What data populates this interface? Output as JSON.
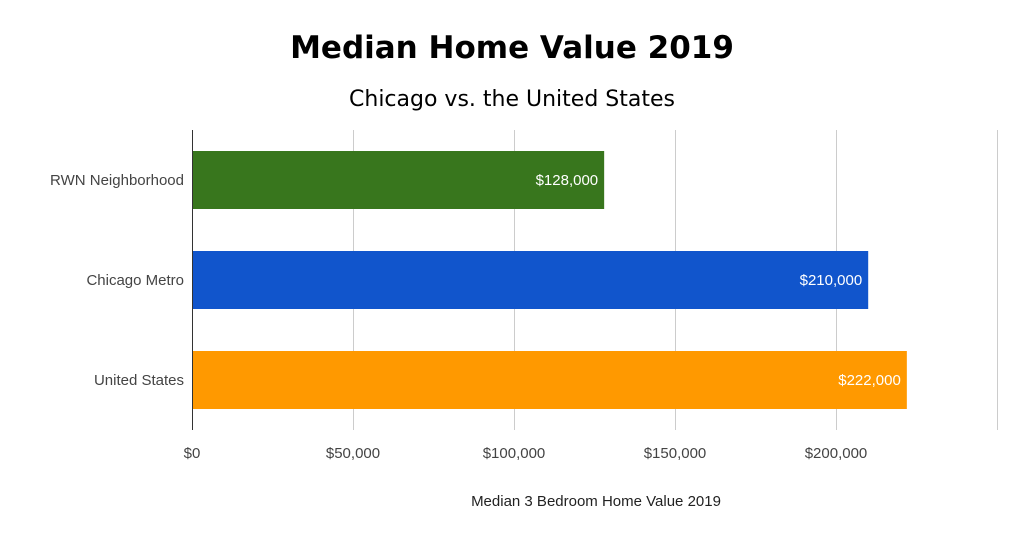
{
  "chart_data": {
    "type": "bar",
    "orientation": "horizontal",
    "title": "Median Home Value 2019",
    "subtitle": "Chicago vs. the United States",
    "xlabel": "Median 3 Bedroom Home Value 2019",
    "ylabel": "",
    "xlim": [
      0,
      250000
    ],
    "x_ticks": [
      0,
      50000,
      100000,
      150000,
      200000
    ],
    "x_tick_labels": [
      "$0",
      "$50,000",
      "$100,000",
      "$150,000",
      "$200,000"
    ],
    "grid": true,
    "legend": "none",
    "categories": [
      "RWN Neighborhood",
      "Chicago Metro",
      "United States"
    ],
    "values": [
      128000,
      210000,
      222000
    ],
    "data_labels": [
      "$128,000",
      "$210,000",
      "$222,000"
    ],
    "colors": [
      "#38761d",
      "#1155cc",
      "#ff9900"
    ]
  }
}
